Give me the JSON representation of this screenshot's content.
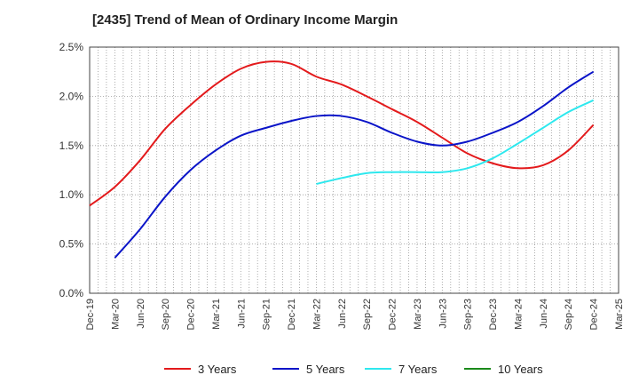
{
  "chart_data": {
    "type": "line",
    "title": "[2435]  Trend of Mean of Ordinary Income Margin",
    "xlabel": "",
    "ylabel": "",
    "ylim": [
      0,
      2.5
    ],
    "y_ticks": [
      "0.0%",
      "0.5%",
      "1.0%",
      "1.5%",
      "2.0%",
      "2.5%"
    ],
    "x_ticks": [
      "Dec-19",
      "Mar-20",
      "Jun-20",
      "Sep-20",
      "Dec-20",
      "Mar-21",
      "Jun-21",
      "Sep-21",
      "Dec-21",
      "Mar-22",
      "Jun-22",
      "Sep-22",
      "Dec-22",
      "Mar-23",
      "Jun-23",
      "Sep-23",
      "Dec-23",
      "Mar-24",
      "Jun-24",
      "Sep-24",
      "Dec-24",
      "Mar-25"
    ],
    "grid": true,
    "legend_position": "bottom",
    "series": [
      {
        "name": "3 Years",
        "color": "#e31a1c",
        "points": [
          [
            "Dec-19",
            0.89
          ],
          [
            "Mar-20",
            1.08
          ],
          [
            "Jun-20",
            1.35
          ],
          [
            "Sep-20",
            1.67
          ],
          [
            "Dec-20",
            1.91
          ],
          [
            "Mar-21",
            2.12
          ],
          [
            "Jun-21",
            2.28
          ],
          [
            "Sep-21",
            2.35
          ],
          [
            "Dec-21",
            2.33
          ],
          [
            "Mar-22",
            2.2
          ],
          [
            "Jun-22",
            2.12
          ],
          [
            "Sep-22",
            2.0
          ],
          [
            "Dec-22",
            1.87
          ],
          [
            "Mar-23",
            1.74
          ],
          [
            "Jun-23",
            1.58
          ],
          [
            "Sep-23",
            1.42
          ],
          [
            "Dec-23",
            1.32
          ],
          [
            "Mar-24",
            1.27
          ],
          [
            "Jun-24",
            1.3
          ],
          [
            "Sep-24",
            1.45
          ],
          [
            "Dec-24",
            1.71
          ]
        ]
      },
      {
        "name": "5 Years",
        "color": "#0a14c8",
        "points": [
          [
            "Mar-20",
            0.36
          ],
          [
            "Jun-20",
            0.65
          ],
          [
            "Sep-20",
            0.98
          ],
          [
            "Dec-20",
            1.25
          ],
          [
            "Mar-21",
            1.45
          ],
          [
            "Jun-21",
            1.6
          ],
          [
            "Sep-21",
            1.68
          ],
          [
            "Dec-21",
            1.75
          ],
          [
            "Mar-22",
            1.8
          ],
          [
            "Jun-22",
            1.8
          ],
          [
            "Sep-22",
            1.74
          ],
          [
            "Dec-22",
            1.63
          ],
          [
            "Mar-23",
            1.54
          ],
          [
            "Jun-23",
            1.5
          ],
          [
            "Sep-23",
            1.54
          ],
          [
            "Dec-23",
            1.63
          ],
          [
            "Mar-24",
            1.74
          ],
          [
            "Jun-24",
            1.9
          ],
          [
            "Sep-24",
            2.09
          ],
          [
            "Dec-24",
            2.25
          ]
        ]
      },
      {
        "name": "7 Years",
        "color": "#2ee8ee",
        "points": [
          [
            "Mar-22",
            1.11
          ],
          [
            "Jun-22",
            1.17
          ],
          [
            "Sep-22",
            1.22
          ],
          [
            "Dec-22",
            1.23
          ],
          [
            "Mar-23",
            1.23
          ],
          [
            "Jun-23",
            1.23
          ],
          [
            "Sep-23",
            1.27
          ],
          [
            "Dec-23",
            1.37
          ],
          [
            "Mar-24",
            1.52
          ],
          [
            "Jun-24",
            1.68
          ],
          [
            "Sep-24",
            1.84
          ],
          [
            "Dec-24",
            1.96
          ]
        ]
      },
      {
        "name": "10 Years",
        "color": "#1b8a1b",
        "points": []
      }
    ]
  }
}
